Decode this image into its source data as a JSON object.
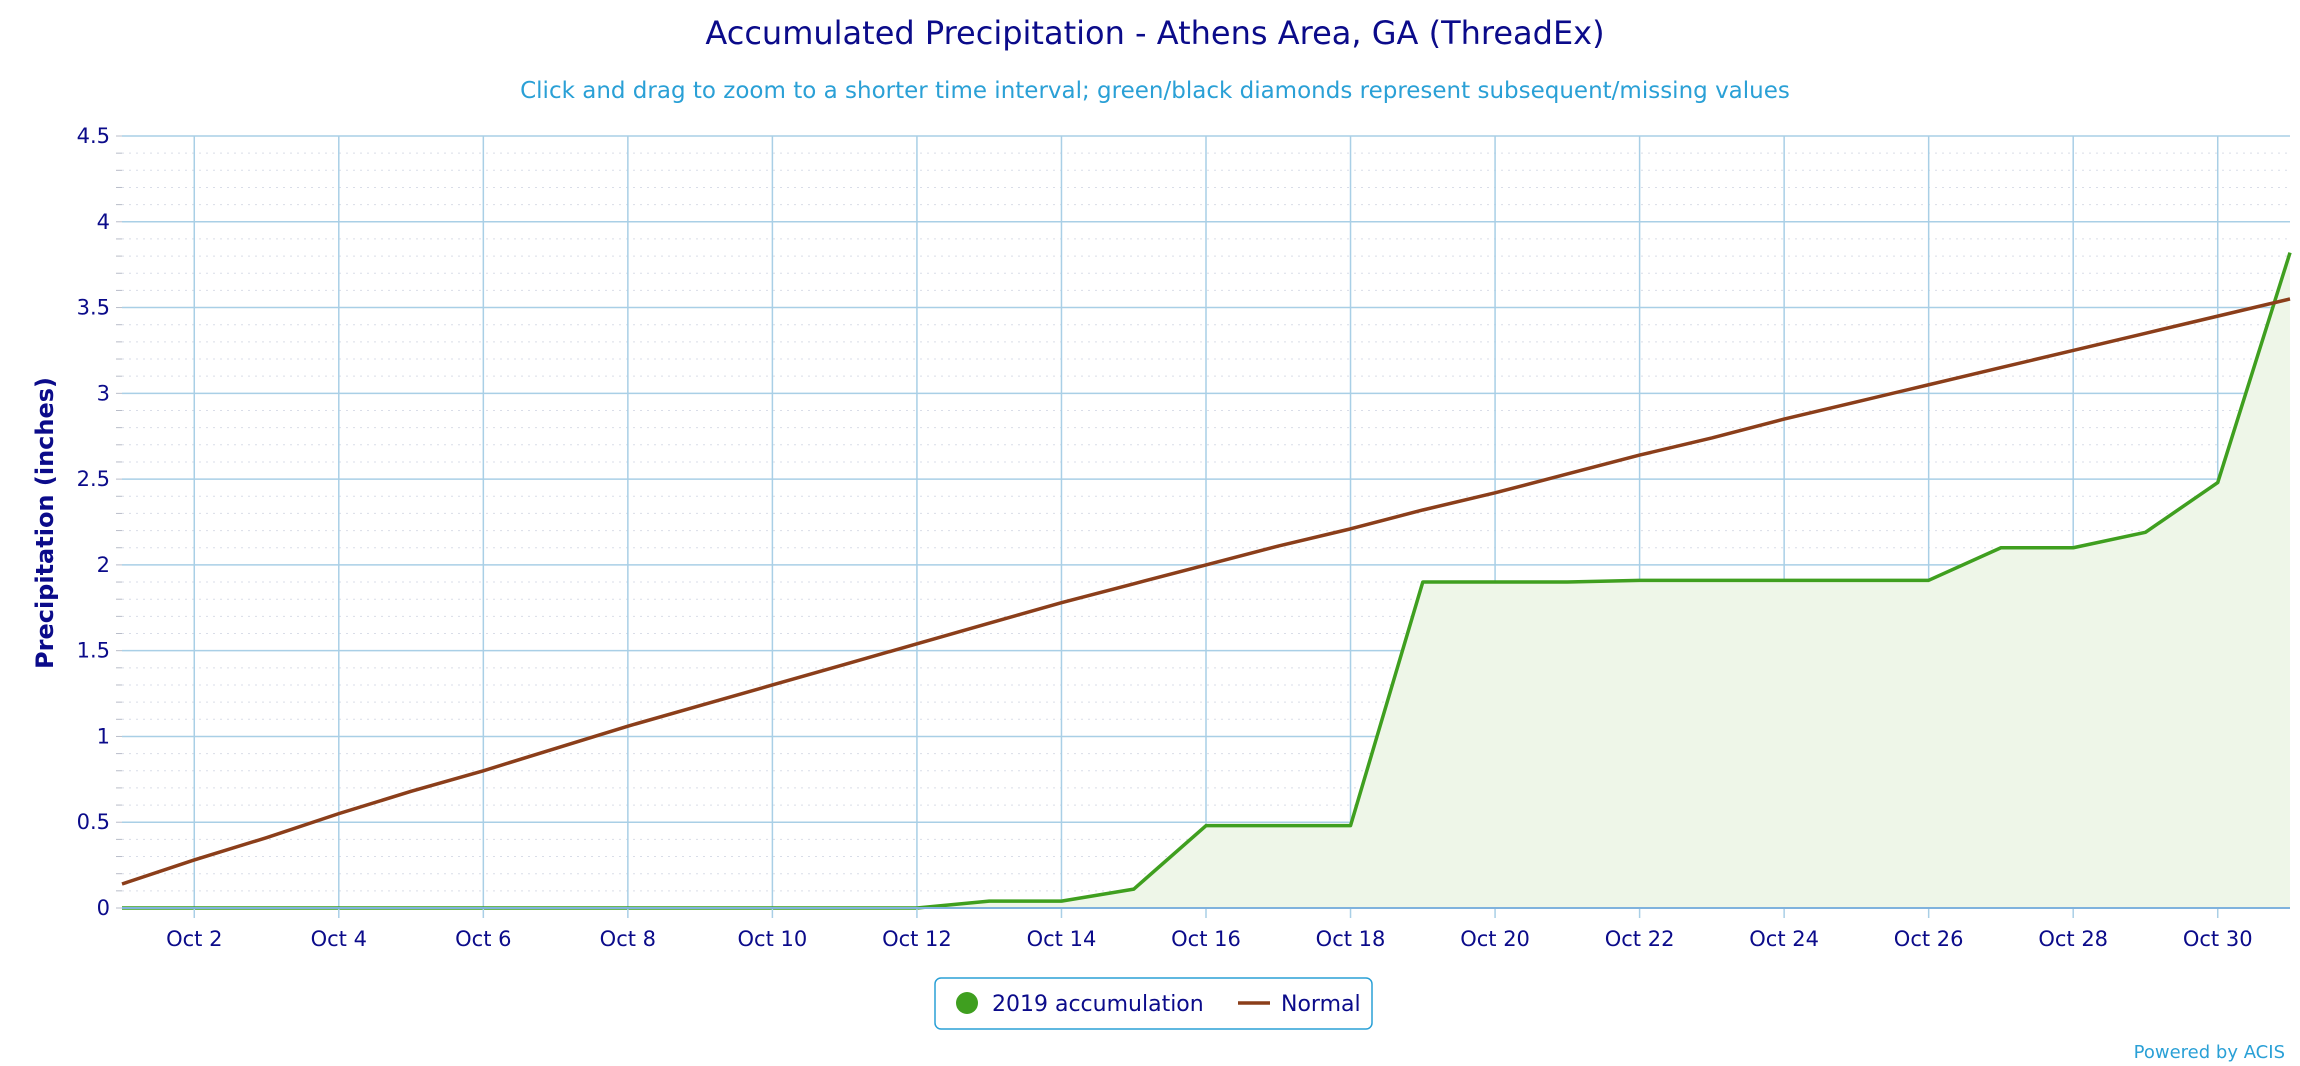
{
  "chart_data": {
    "type": "line",
    "title": "Accumulated Precipitation - Athens Area, GA (ThreadEx)",
    "subtitle": "Click and drag to zoom to a shorter time interval; green/black diamonds represent subsequent/missing values",
    "ylabel": "Precipitation (inches)",
    "xlabel": "",
    "ylim": [
      0,
      4.5
    ],
    "yticks": [
      "0",
      "0.5",
      "1",
      "1.5",
      "2",
      "2.5",
      "3",
      "3.5",
      "4",
      "4.5"
    ],
    "x": [
      1,
      2,
      3,
      4,
      5,
      6,
      7,
      8,
      9,
      10,
      11,
      12,
      13,
      14,
      15,
      16,
      17,
      18,
      19,
      20,
      21,
      22,
      23,
      24,
      25,
      26,
      27,
      28,
      29,
      30,
      31
    ],
    "xticks": [
      {
        "day": 2,
        "label": "Oct 2"
      },
      {
        "day": 4,
        "label": "Oct 4"
      },
      {
        "day": 6,
        "label": "Oct 6"
      },
      {
        "day": 8,
        "label": "Oct 8"
      },
      {
        "day": 10,
        "label": "Oct 10"
      },
      {
        "day": 12,
        "label": "Oct 12"
      },
      {
        "day": 14,
        "label": "Oct 14"
      },
      {
        "day": 16,
        "label": "Oct 16"
      },
      {
        "day": 18,
        "label": "Oct 18"
      },
      {
        "day": 20,
        "label": "Oct 20"
      },
      {
        "day": 22,
        "label": "Oct 22"
      },
      {
        "day": 24,
        "label": "Oct 24"
      },
      {
        "day": 26,
        "label": "Oct 26"
      },
      {
        "day": 28,
        "label": "Oct 28"
      },
      {
        "day": 30,
        "label": "Oct 30"
      }
    ],
    "grid": true,
    "legend_position": "bottom-center",
    "series": [
      {
        "name": "2019 accumulation",
        "kind": "area",
        "color": "#3f9f1f",
        "fill": "#eef6e8",
        "values": [
          0,
          0,
          0,
          0,
          0,
          0,
          0,
          0,
          0,
          0,
          0,
          0,
          0.04,
          0.04,
          0.11,
          0.48,
          0.48,
          0.48,
          1.9,
          1.9,
          1.9,
          1.91,
          1.91,
          1.91,
          1.91,
          1.91,
          2.1,
          2.1,
          2.19,
          2.48,
          3.82
        ]
      },
      {
        "name": "Normal",
        "kind": "line",
        "color": "#8b3e1a",
        "values": [
          0.14,
          0.28,
          0.41,
          0.55,
          0.68,
          0.8,
          0.93,
          1.06,
          1.18,
          1.3,
          1.42,
          1.54,
          1.66,
          1.78,
          1.89,
          2.0,
          2.11,
          2.21,
          2.32,
          2.42,
          2.53,
          2.64,
          2.74,
          2.85,
          2.95,
          3.05,
          3.15,
          3.25,
          3.35,
          3.45,
          3.55
        ]
      }
    ]
  },
  "credits": "Powered by ACIS"
}
